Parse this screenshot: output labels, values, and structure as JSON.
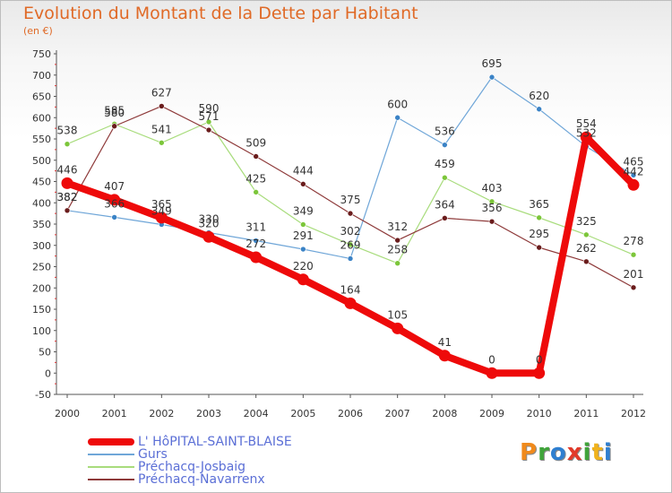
{
  "header": {
    "title": "Evolution du Montant de la Dette par Habitant",
    "unit": "(en €)"
  },
  "logo": {
    "text": "Proxiti",
    "colors": [
      "#f08a1c",
      "#3fa43a",
      "#2f7fd0",
      "#e23a2a",
      "#3fa43a",
      "#f0b21c",
      "#2f7fd0"
    ]
  },
  "chart_data": {
    "type": "line",
    "title": "Evolution du Montant de la Dette par Habitant",
    "subtitle": "(en €)",
    "xlabel": "",
    "ylabel": "",
    "ylim": [
      -50,
      750
    ],
    "ytick_step": 50,
    "grid": false,
    "legend_position": "bottom-left",
    "x": [
      "2000",
      "2001",
      "2002",
      "2003",
      "2004",
      "2005",
      "2006",
      "2007",
      "2008",
      "2009",
      "2010",
      "2011",
      "2012"
    ],
    "series": [
      {
        "name": "Gurs",
        "color": "#6fa6d8",
        "point_color": "#3b83c6",
        "line_width": 1.2,
        "values": [
          382,
          366,
          349,
          330,
          311,
          291,
          269,
          600,
          536,
          695,
          620,
          532,
          465
        ],
        "labels": [
          "382",
          "366",
          "349",
          "330",
          "311",
          "291",
          "269",
          "600",
          "536",
          "695",
          "620",
          "532",
          "465"
        ]
      },
      {
        "name": "Préchacq-Josbaig",
        "color": "#a8dc7c",
        "point_color": "#7cc63a",
        "line_width": 1.2,
        "values": [
          538,
          585,
          541,
          590,
          425,
          349,
          302,
          258,
          459,
          403,
          365,
          325,
          278
        ],
        "labels": [
          "538",
          "585",
          "541",
          "590",
          "425",
          "349",
          "302",
          "258",
          "459",
          "403",
          "365",
          "325",
          "278"
        ]
      },
      {
        "name": "Préchacq-Navarrenx",
        "color": "#8e3a3a",
        "point_color": "#6a1c1c",
        "line_width": 1.2,
        "values": [
          382,
          580,
          627,
          571,
          509,
          444,
          375,
          312,
          364,
          356,
          295,
          262,
          201
        ],
        "labels": [
          "382",
          "580",
          "627",
          "571",
          "509",
          "444",
          "375",
          "312",
          "364",
          "356",
          "295",
          "262",
          "201"
        ]
      },
      {
        "name": "L' HôPITAL-SAINT-BLAISE",
        "color": "#ee0a0a",
        "point_color": "#ee0a0a",
        "line_width": 8,
        "values": [
          446,
          407,
          365,
          320,
          272,
          220,
          164,
          105,
          41,
          0,
          0,
          554,
          442
        ],
        "labels": [
          "446",
          "407",
          "365",
          "320",
          "272",
          "220",
          "164",
          "105",
          "41",
          "0",
          "0",
          "554",
          "442"
        ]
      }
    ],
    "legend_order": [
      "L' HôPITAL-SAINT-BLAISE",
      "Gurs",
      "Préchacq-Josbaig",
      "Préchacq-Navarrenx"
    ]
  }
}
